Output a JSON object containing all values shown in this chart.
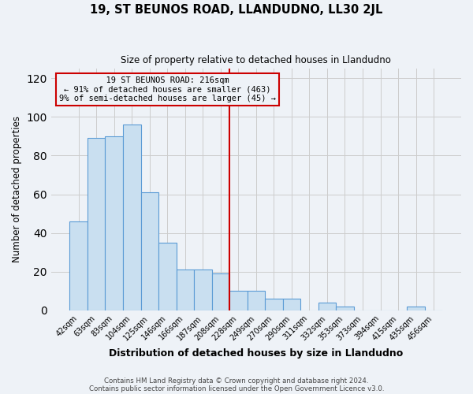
{
  "title": "19, ST BEUNOS ROAD, LLANDUDNO, LL30 2JL",
  "subtitle": "Size of property relative to detached houses in Llandudno",
  "xlabel": "Distribution of detached houses by size in Llandudno",
  "ylabel": "Number of detached properties",
  "bar_labels": [
    "42sqm",
    "63sqm",
    "83sqm",
    "104sqm",
    "125sqm",
    "146sqm",
    "166sqm",
    "187sqm",
    "208sqm",
    "228sqm",
    "249sqm",
    "270sqm",
    "290sqm",
    "311sqm",
    "332sqm",
    "353sqm",
    "373sqm",
    "394sqm",
    "415sqm",
    "435sqm",
    "456sqm"
  ],
  "bar_values": [
    46,
    89,
    90,
    96,
    61,
    35,
    21,
    21,
    19,
    10,
    10,
    6,
    6,
    0,
    4,
    2,
    0,
    0,
    0,
    2,
    0
  ],
  "bar_color": "#c9dff0",
  "bar_edge_color": "#5b9bd5",
  "vline_x": 8.5,
  "vline_color": "#cc0000",
  "annotation_title": "19 ST BEUNOS ROAD: 216sqm",
  "annotation_line1": "← 91% of detached houses are smaller (463)",
  "annotation_line2": "9% of semi-detached houses are larger (45) →",
  "annotation_box_color": "#cc0000",
  "ylim": [
    0,
    125
  ],
  "yticks": [
    0,
    20,
    40,
    60,
    80,
    100,
    120
  ],
  "grid_color": "#cccccc",
  "background_color": "#eef2f7",
  "footer1": "Contains HM Land Registry data © Crown copyright and database right 2024.",
  "footer2": "Contains public sector information licensed under the Open Government Licence v3.0."
}
